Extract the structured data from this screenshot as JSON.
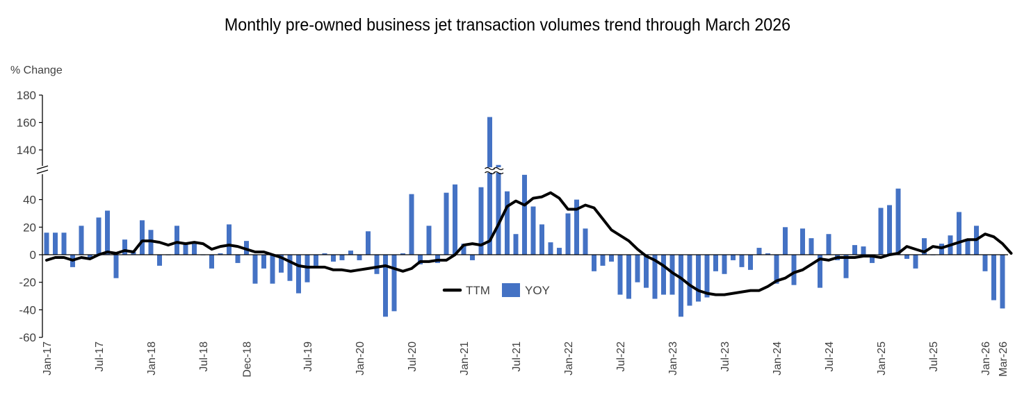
{
  "chart_data": {
    "type": "bar",
    "title": "Monthly pre-owned business jet transaction volumes trend through March 2026",
    "ylabel": "% Change",
    "xlabel": "",
    "ylim": [
      -60,
      180
    ],
    "axis_break": {
      "lower_max": 58,
      "upper_min": 126
    },
    "y_ticks_lower": [
      -60,
      -40,
      -20,
      0,
      20,
      40
    ],
    "y_ticks_upper": [
      140,
      160,
      180
    ],
    "x_tick_labels": [
      {
        "label": "Jan-17",
        "index": 0
      },
      {
        "label": "Jul-17",
        "index": 6
      },
      {
        "label": "Jan-18",
        "index": 12
      },
      {
        "label": "Jul-18",
        "index": 18
      },
      {
        "label": "Dec-18",
        "index": 23
      },
      {
        "label": "Jul-19",
        "index": 30
      },
      {
        "label": "Jan-20",
        "index": 36
      },
      {
        "label": "Jul-20",
        "index": 42
      },
      {
        "label": "Jan-21",
        "index": 48
      },
      {
        "label": "Jul-21",
        "index": 54
      },
      {
        "label": "Jan-22",
        "index": 60
      },
      {
        "label": "Jul-22",
        "index": 66
      },
      {
        "label": "Jan-23",
        "index": 72
      },
      {
        "label": "Jul-23",
        "index": 78
      },
      {
        "label": "Jan-24",
        "index": 84
      },
      {
        "label": "Jul-24",
        "index": 90
      },
      {
        "label": "Jan-25",
        "index": 96
      },
      {
        "label": "Jul-25",
        "index": 102
      },
      {
        "label": "Jan-26",
        "index": 108
      },
      {
        "label": "Mar-26",
        "index": 110
      }
    ],
    "x_start": "Jan-17",
    "x_end": "Mar-26",
    "legend": {
      "position": "center-bottom",
      "entries": [
        "TTM",
        "YOY"
      ]
    },
    "grid": false,
    "series": [
      {
        "name": "YOY",
        "kind": "bar",
        "color": "#4472c4",
        "values": [
          16,
          16,
          16,
          -9,
          21,
          -2,
          27,
          32,
          -17,
          11,
          2,
          25,
          18,
          -8,
          0,
          21,
          8,
          8,
          0,
          -10,
          1,
          22,
          -6,
          10,
          -21,
          -10,
          -21,
          -13,
          -19,
          -28,
          -20,
          -8,
          1,
          -5,
          -4,
          3,
          -4,
          17,
          -14,
          -45,
          -41,
          1,
          44,
          -7,
          21,
          -6,
          45,
          51,
          8,
          -4,
          49,
          164,
          129,
          46,
          15,
          58,
          35,
          22,
          9,
          5,
          30,
          40,
          19,
          -12,
          -8,
          -5,
          -29,
          -32,
          -20,
          -24,
          -32,
          -29,
          -29,
          -45,
          -37,
          -34,
          -31,
          -12,
          -14,
          -4,
          -9,
          -11,
          5,
          1,
          -21,
          20,
          -22,
          19,
          12,
          -24,
          15,
          -4,
          -17,
          7,
          6,
          -6,
          34,
          36,
          48,
          -3,
          -10,
          12,
          0,
          8,
          14,
          31,
          11,
          21,
          -12,
          -33,
          -39
        ]
      },
      {
        "name": "TTM",
        "kind": "line",
        "color": "#000000",
        "values": [
          -4,
          -2,
          -2,
          -4,
          -2,
          -3,
          0,
          2,
          1,
          3,
          2,
          10,
          10,
          9,
          7,
          9,
          8,
          9,
          8,
          4,
          6,
          7,
          6,
          4,
          2,
          2,
          0,
          -2,
          -5,
          -8,
          -9,
          -9,
          -9,
          -11,
          -11,
          -12,
          -11,
          -10,
          -9,
          -8,
          -10,
          -12,
          -10,
          -5,
          -5,
          -4,
          -4,
          0,
          7,
          8,
          7,
          10,
          22,
          35,
          39,
          36,
          41,
          42,
          45,
          41,
          33,
          33,
          36,
          34,
          26,
          18,
          14,
          10,
          4,
          -1,
          -4,
          -8,
          -13,
          -17,
          -22,
          -26,
          -28,
          -29,
          -29,
          -28,
          -27,
          -26,
          -26,
          -23,
          -19,
          -17,
          -13,
          -11,
          -7,
          -3,
          -4,
          -2,
          -2,
          -2,
          -1,
          -1,
          -2,
          0,
          1,
          6,
          4,
          2,
          6,
          5,
          7,
          9,
          11,
          11,
          15,
          13,
          8,
          1
        ]
      }
    ]
  }
}
